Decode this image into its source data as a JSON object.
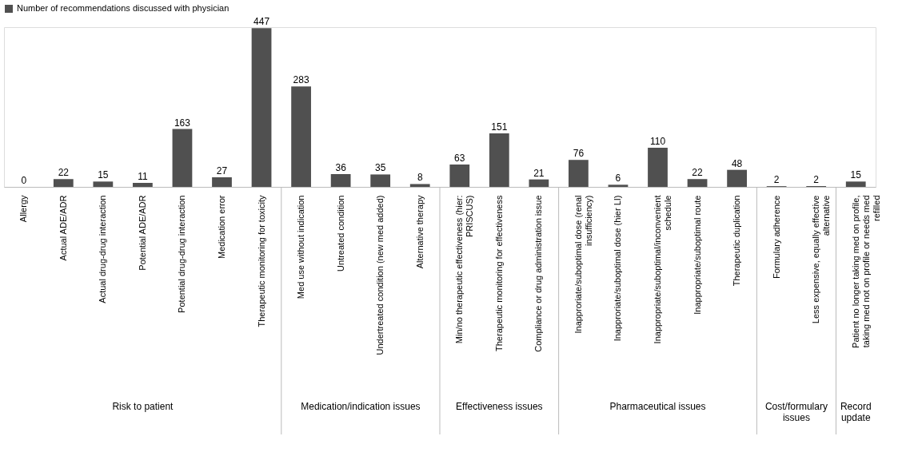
{
  "chart_data": {
    "type": "bar",
    "categories": [
      "Allergy",
      "Actual ADE/ADR",
      "Actual drug-drug interaction",
      "Potential ADE/ADR",
      "Potential drug-drug interaction",
      "Medication error",
      "Therapeutic monitoring for toxicity",
      "Med use without indication",
      "Untreated condition",
      "Undertreated condition (new med added)",
      "Alternative therapy",
      "Min/no therapeutic effectiveness (hier: PRISCUS)",
      "Therapeutic monitoring for effectiveness",
      "Compliance or drug administration issue",
      "Inapproriate/suboptimal dose (renal insufficiency)",
      "Inapproriate/suboptimal dose (hier LI)",
      "Inappropriate/suboptimal/inconvenient schedule",
      "Inappropriate/suboptimal route",
      "Therapeutic duplication",
      "Formulary adherence",
      "Less expensive, equally effective alternative",
      "Patient no longer taking med on profile, taking med not on profile or needs med refilled"
    ],
    "series": [
      {
        "name": "Number of recommendations discussed with physician",
        "color": "#505050",
        "values": [
          0,
          22,
          15,
          11,
          163,
          27,
          447,
          283,
          36,
          35,
          8,
          63,
          151,
          21,
          76,
          6,
          110,
          22,
          48,
          2,
          2,
          15
        ]
      }
    ],
    "data_labels": true,
    "legend": "top",
    "annotations": [
      "Risk to patient",
      "Medication/indication issues",
      "Effectiveness issues",
      "Pharmaceutical issues",
      "Cost/formulary issues",
      "Record update"
    ]
  }
}
